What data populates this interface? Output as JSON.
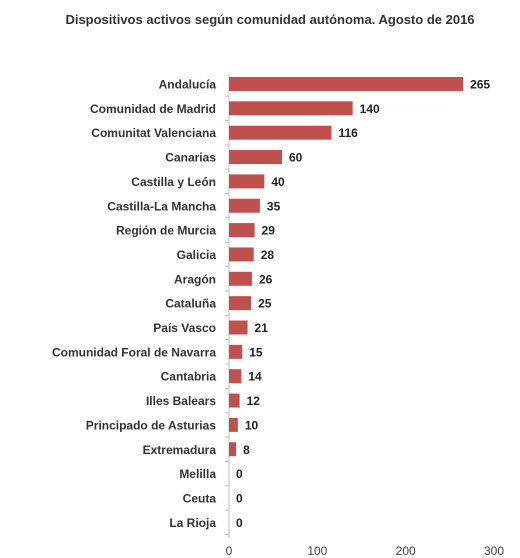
{
  "chart_data": {
    "type": "bar",
    "orientation": "horizontal",
    "title": "Dispositivos activos según comunidad autónoma. Agosto de 2016",
    "categories": [
      "Andalucía",
      "Comunidad de Madrid",
      "Comunitat Valenciana",
      "Canarias",
      "Castilla y León",
      "Castilla-La Mancha",
      "Región de Murcia",
      "Galicia",
      "Aragón",
      "Cataluña",
      "País Vasco",
      "Comunidad Foral de Navarra",
      "Cantabria",
      "Illes Balears",
      "Principado de Asturias",
      "Extremadura",
      "Melilla",
      "Ceuta",
      "La Rioja"
    ],
    "values": [
      265,
      140,
      116,
      60,
      40,
      35,
      29,
      28,
      26,
      25,
      21,
      15,
      14,
      12,
      10,
      8,
      0,
      0,
      0
    ],
    "xlim": [
      0,
      300
    ],
    "xticks": [
      0,
      100,
      200,
      300
    ],
    "xlabel": "",
    "ylabel": "",
    "grid": false,
    "legend": "none",
    "bar_color": "#c0504d"
  }
}
